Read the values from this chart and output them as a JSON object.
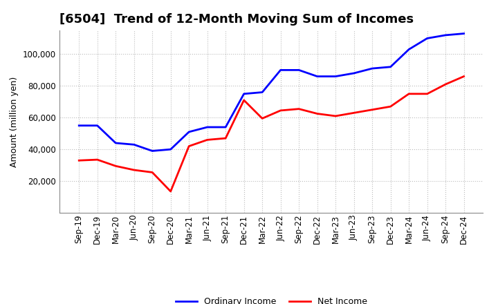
{
  "title": "[6504]  Trend of 12-Month Moving Sum of Incomes",
  "ylabel": "Amount (million yen)",
  "x_labels": [
    "Sep-19",
    "Dec-19",
    "Mar-20",
    "Jun-20",
    "Sep-20",
    "Dec-20",
    "Mar-21",
    "Jun-21",
    "Sep-21",
    "Dec-21",
    "Mar-22",
    "Jun-22",
    "Sep-22",
    "Dec-22",
    "Mar-23",
    "Jun-23",
    "Sep-23",
    "Dec-23",
    "Mar-24",
    "Jun-24",
    "Sep-24",
    "Dec-24"
  ],
  "ordinary_income": [
    55000,
    55000,
    44000,
    43000,
    39000,
    40000,
    51000,
    54000,
    54000,
    75000,
    76000,
    90000,
    90000,
    86000,
    86000,
    88000,
    91000,
    92000,
    103000,
    110000,
    112000,
    113000
  ],
  "net_income": [
    33000,
    33500,
    29500,
    27000,
    25500,
    13500,
    42000,
    46000,
    47000,
    71000,
    59500,
    64500,
    65500,
    62500,
    61000,
    63000,
    65000,
    67000,
    75000,
    75000,
    81000,
    86000
  ],
  "ordinary_color": "#0000FF",
  "net_color": "#FF0000",
  "background_color": "#FFFFFF",
  "grid_color": "#AAAAAA",
  "ylim": [
    0,
    115000
  ],
  "yticks": [
    20000,
    40000,
    60000,
    80000,
    100000
  ],
  "title_fontsize": 13,
  "legend_fontsize": 9,
  "tick_fontsize": 8.5,
  "ylabel_fontsize": 9
}
